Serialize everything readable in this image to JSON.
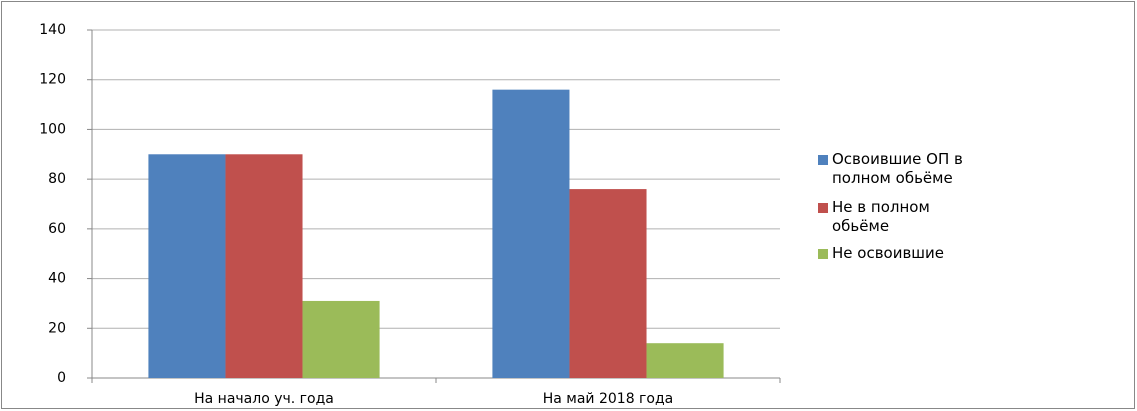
{
  "chart_data": {
    "type": "bar",
    "categories": [
      "На начало уч. года",
      "На май 2018 года"
    ],
    "series": [
      {
        "name": "Освоившие ОП в полном обьёме",
        "color": "#4f81bd",
        "values": [
          90,
          116
        ]
      },
      {
        "name": "Не в полном обьёме",
        "color": "#c0504d",
        "values": [
          90,
          76
        ]
      },
      {
        "name": "Не освоившие",
        "color": "#9bbb59",
        "values": [
          31,
          14
        ]
      }
    ],
    "ylim": [
      0,
      140
    ],
    "yticks": [
      0,
      20,
      40,
      60,
      80,
      100,
      120,
      140
    ],
    "grid": true,
    "legend": "right"
  }
}
